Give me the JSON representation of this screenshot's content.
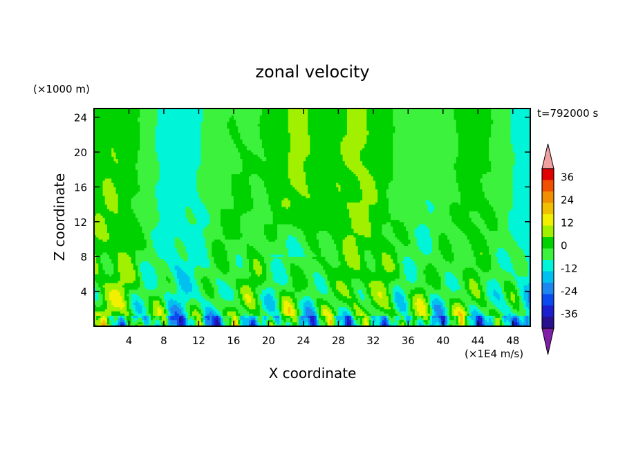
{
  "chart_data": {
    "type": "heatmap",
    "title": "zonal velocity",
    "time_label": "t=792000 s",
    "xlabel": "X coordinate",
    "ylabel": "Z coordinate",
    "x_unit_label": "(×1E4 m/s)",
    "y_unit_label": "(×1000 m)",
    "xlim": [
      0,
      50
    ],
    "ylim": [
      0,
      25
    ],
    "x_ticks": [
      4,
      8,
      12,
      16,
      20,
      24,
      28,
      32,
      36,
      40,
      44,
      48
    ],
    "y_ticks": [
      4,
      8,
      12,
      16,
      20,
      24
    ],
    "colorbar": {
      "ticks": [
        36,
        24,
        12,
        0,
        -12,
        -24,
        -36
      ],
      "levels": [
        -42,
        -36,
        -30,
        -24,
        -18,
        -12,
        -6,
        0,
        6,
        12,
        18,
        24,
        30,
        36,
        42
      ],
      "colors": [
        "#7f1fa8",
        "#2a0f8f",
        "#1b1fd0",
        "#0c4af0",
        "#1e86f0",
        "#00c0f0",
        "#00f5d8",
        "#3cf23c",
        "#00d200",
        "#a0f000",
        "#f0f000",
        "#f0c000",
        "#f09000",
        "#f05000",
        "#e00000",
        "#f0a0a0"
      ],
      "extend_low_color": "#7f1fa8",
      "extend_high_color": "#f0a0a0"
    },
    "field_summary": {
      "upper_level_background": 0,
      "upper_level_jet_center_x": 23,
      "upper_level_jet_max": 15,
      "lower_level_range": [
        -30,
        18
      ]
    }
  }
}
